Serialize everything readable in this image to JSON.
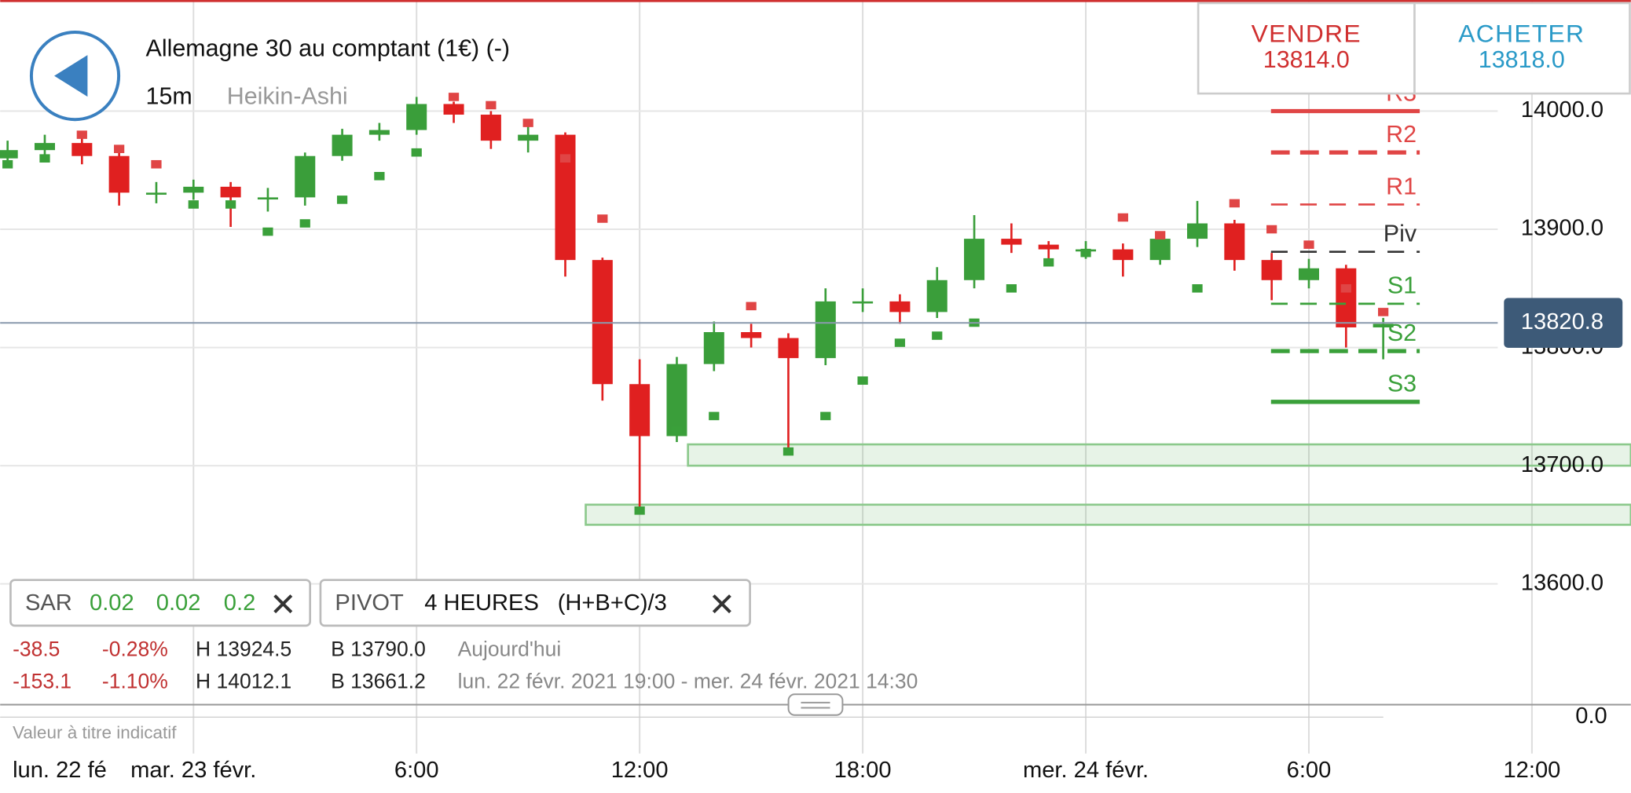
{
  "header": {
    "title": "Allemagne 30 au comptant (1€) (-)",
    "interval": "15m",
    "style": "Heikin-Ashi"
  },
  "trade": {
    "sell": {
      "label": "VENDRE",
      "price": {
        "value": 13814,
        "label": "13814.0"
      }
    },
    "buy": {
      "label": "ACHETER",
      "price": {
        "value": 13818,
        "label": "13818.0"
      }
    }
  },
  "indicators": {
    "sar": {
      "name": "SAR",
      "params": [
        0.02,
        0.02,
        0.2
      ]
    },
    "pivot": {
      "name": "PIVOT",
      "period": "4 HEURES",
      "formula": "(H+B+C)/3"
    }
  },
  "stats": [
    [
      "-38.5",
      "-0.28%",
      "H 13924.5",
      "B 13790.0",
      "Aujourd'hui"
    ],
    [
      "-153.1",
      "-1.10%",
      "H 14012.1",
      "B 13661.2",
      "lun. 22 févr. 2021 19:00 - mer. 24 févr. 2021 14:30"
    ]
  ],
  "disclaimer": "Valeur à titre indicatif",
  "chart_data": {
    "type": "candlestick",
    "x": [
      -5,
      -4,
      -3,
      -2,
      -1,
      0,
      1,
      2,
      3,
      4,
      5,
      6,
      7,
      8,
      9,
      10,
      11,
      12,
      13,
      14,
      15,
      16,
      17,
      18,
      19,
      20,
      21,
      22,
      23,
      24,
      25,
      26,
      27,
      28,
      29,
      30,
      31,
      32
    ],
    "open": [
      13960,
      13967,
      13973,
      13962,
      13931,
      13931,
      13936,
      13927,
      13927,
      13962,
      13980,
      13984,
      14006,
      13997,
      13975,
      13980,
      13874,
      13769,
      13725,
      13786,
      13813,
      13808,
      13791,
      13839,
      13839,
      13830,
      13857,
      13892,
      13887,
      13883,
      13883,
      13874,
      13892,
      13905,
      13874,
      13857,
      13867,
      13817
    ],
    "high": [
      13975,
      13980,
      13978,
      13968,
      13940,
      13942,
      13940,
      13935,
      13965,
      13985,
      13990,
      14012,
      14008,
      14000,
      13990,
      13982,
      13876,
      13790,
      13792,
      13822,
      13820,
      13812,
      13850,
      13850,
      13845,
      13868,
      13912,
      13905,
      13890,
      13890,
      13888,
      13898,
      13924,
      13908,
      13880,
      13875,
      13870,
      13825
    ],
    "low": [
      13955,
      13960,
      13955,
      13920,
      13922,
      13925,
      13902,
      13915,
      13920,
      13958,
      13975,
      13980,
      13990,
      13968,
      13965,
      13860,
      13755,
      13661,
      13720,
      13780,
      13800,
      13712,
      13785,
      13830,
      13820,
      13825,
      13850,
      13880,
      13875,
      13875,
      13860,
      13870,
      13885,
      13865,
      13840,
      13850,
      13800,
      13790
    ],
    "close": [
      13967,
      13973,
      13962,
      13931,
      13931,
      13936,
      13927,
      13927,
      13962,
      13980,
      13984,
      14006,
      13997,
      13975,
      13980,
      13874,
      13769,
      13725,
      13786,
      13813,
      13808,
      13791,
      13839,
      13839,
      13830,
      13857,
      13892,
      13887,
      13883,
      13883,
      13874,
      13892,
      13905,
      13874,
      13857,
      13867,
      13817,
      13820
    ],
    "up_color": "#3a9e3a",
    "down_color": "#e02020",
    "sar": {
      "values": [
        13955,
        13960,
        13980,
        13968,
        13955,
        13921,
        13921,
        13898,
        13905,
        13925,
        13945,
        13965,
        14012,
        14005,
        13990,
        13960,
        13909,
        13662,
        13730,
        13742,
        13835,
        13712,
        13742,
        13772,
        13804,
        13810,
        13821,
        13850,
        13872,
        13880,
        13910,
        13895,
        13850,
        13922,
        13900,
        13887,
        13850,
        13830
      ],
      "below_color": "#3aa03a",
      "above_color": "#e04545"
    },
    "pivots": [
      {
        "name": "R3",
        "value": 14000,
        "color": "#e04545",
        "style": "solid"
      },
      {
        "name": "R2",
        "value": 13965,
        "color": "#e04545",
        "style": "dashed"
      },
      {
        "name": "R1",
        "value": 13921,
        "color": "#e04545",
        "style": "thin"
      },
      {
        "name": "Piv",
        "value": 13881,
        "color": "#333333",
        "style": "thin"
      },
      {
        "name": "S1",
        "value": 13837,
        "color": "#3aa03a",
        "style": "thin"
      },
      {
        "name": "S2",
        "value": 13797,
        "color": "#3aa03a",
        "style": "dashed"
      },
      {
        "name": "S3",
        "value": 13754,
        "color": "#3aa03a",
        "style": "solid"
      }
    ],
    "zones": [
      {
        "low": 13700,
        "high": 13718,
        "start": 13.3
      },
      {
        "low": 13650,
        "high": 13667,
        "start": 10.55
      }
    ],
    "current_price": 13820.8,
    "xlim": [
      -5.2,
      38.66
    ],
    "ylim": [
      13500,
      14094
    ],
    "xticks": [
      {
        "value": 0,
        "label": "mar. 23 févr."
      },
      {
        "value": 6,
        "label": "6:00"
      },
      {
        "value": 12,
        "label": "12:00"
      },
      {
        "value": 18,
        "label": "18:00"
      },
      {
        "value": 24,
        "label": "mer. 24 févr."
      },
      {
        "value": 30,
        "label": "6:00"
      },
      {
        "value": 36,
        "label": "12:00"
      }
    ],
    "x_edge_label": "lun. 22 fé",
    "yticks": [
      {
        "value": 13600,
        "label": "13600.0"
      },
      {
        "value": 13700,
        "label": "13700.0"
      },
      {
        "value": 13800,
        "label": "13800.0"
      },
      {
        "value": 13900,
        "label": "13900.0"
      },
      {
        "value": 14000,
        "label": "14000.0"
      }
    ],
    "macd_ticks": [
      {
        "value": 0,
        "label": "0.0"
      }
    ],
    "grid": true
  }
}
